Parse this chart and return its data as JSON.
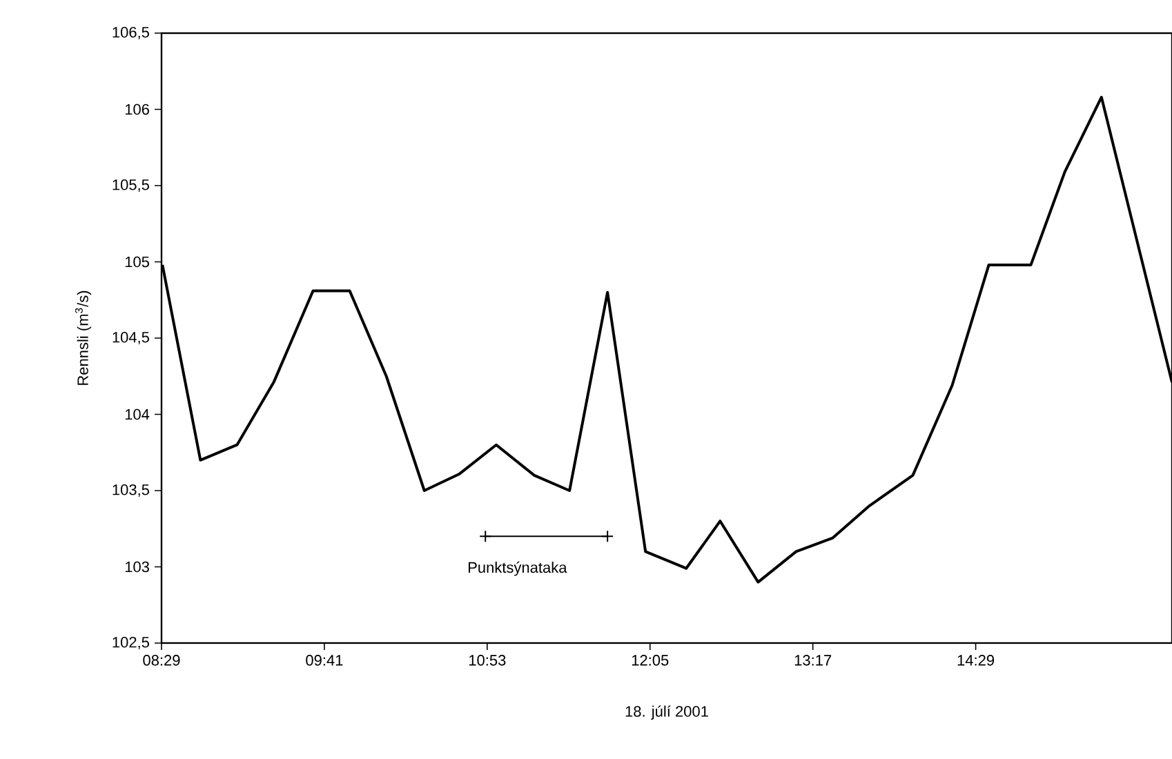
{
  "chart_data": {
    "type": "line",
    "xlabel": "18. júlí 2001",
    "ylabel": "Rennsli (m$^{3}$/s)",
    "x": [
      8.49,
      8.77,
      9.04,
      9.31,
      9.6,
      9.87,
      10.14,
      10.42,
      10.68,
      10.95,
      11.23,
      11.49,
      11.77,
      12.05,
      12.35,
      12.6,
      12.88,
      13.16,
      13.43,
      13.7,
      14.02,
      14.31,
      14.58,
      14.89,
      15.14,
      15.41,
      15.93
    ],
    "series": [
      {
        "color": "#000000",
        "values": [
          104.98,
          103.7,
          103.8,
          104.21,
          104.81,
          104.81,
          104.25,
          103.5,
          103.61,
          103.8,
          103.6,
          103.5,
          104.8,
          103.1,
          102.99,
          103.3,
          102.9,
          103.1,
          103.19,
          103.4,
          103.6,
          104.19,
          104.98,
          104.98,
          105.59,
          106.08,
          104.21
        ]
      },
      {
        "color": "#000000",
        "marker": "cross",
        "x": [
          10.87,
          11.77
        ],
        "values": [
          103.2,
          103.2
        ]
      }
    ],
    "xlim": [
      8.4833,
      15.93
    ],
    "ylim": [
      102.5,
      106.5
    ],
    "xticks": [
      {
        "value": 8.4833,
        "label": "08:29"
      },
      {
        "value": 9.6833,
        "label": "09:41"
      },
      {
        "value": 10.8833,
        "label": "10:53"
      },
      {
        "value": 12.0833,
        "label": "12:05"
      },
      {
        "value": 13.2833,
        "label": "13:17"
      },
      {
        "value": 14.4833,
        "label": "14:29"
      }
    ],
    "yticks": [
      {
        "value": 102.5,
        "label": "102,5"
      },
      {
        "value": 103,
        "label": "103"
      },
      {
        "value": 103.5,
        "label": "103,5"
      },
      {
        "value": 104,
        "label": "104"
      },
      {
        "value": 104.5,
        "label": "104,5"
      },
      {
        "value": 105,
        "label": "105"
      },
      {
        "value": 105.5,
        "label": "105,5"
      },
      {
        "value": 106,
        "label": "106"
      },
      {
        "value": 106.5,
        "label": "106,5"
      }
    ],
    "annotations": [
      "Punktsýnataka"
    ],
    "grid": false,
    "marker": "none",
    "line_style": "solid"
  }
}
